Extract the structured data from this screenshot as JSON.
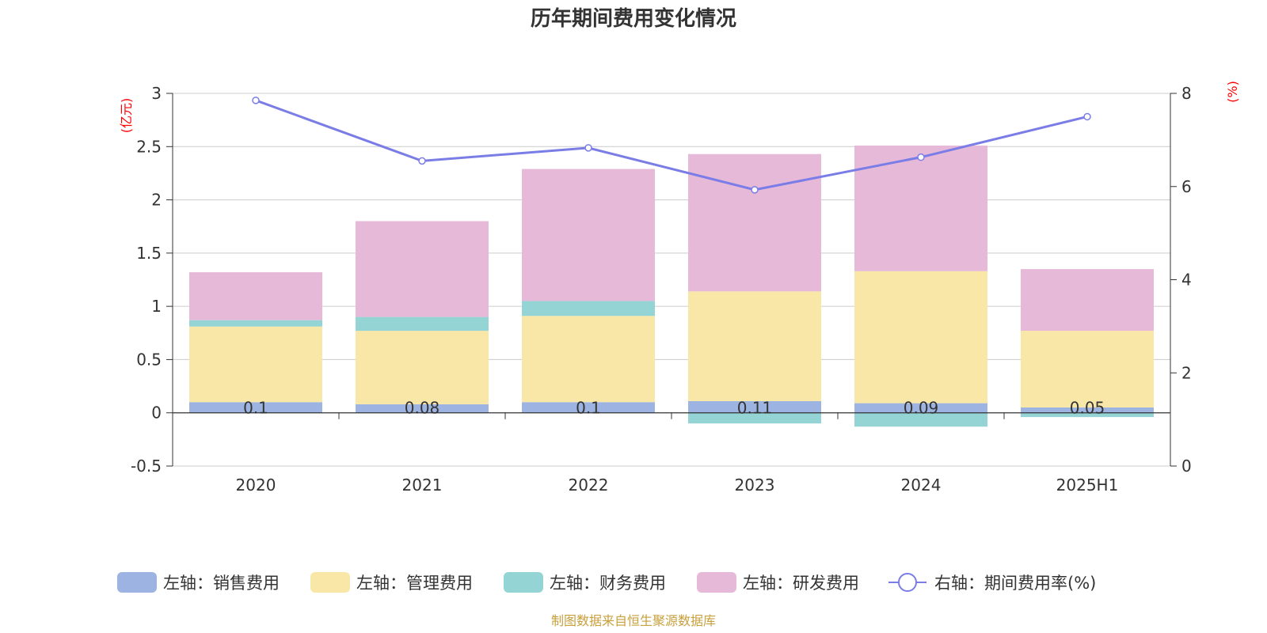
{
  "chart_data": {
    "type": "bar",
    "title": "历年期间费用变化情况",
    "categories": [
      "2020",
      "2021",
      "2022",
      "2023",
      "2024",
      "2025H1"
    ],
    "y_left": {
      "unit": "(亿元)",
      "min": -0.5,
      "max": 3,
      "ticks": [
        "-0.5",
        "0",
        "0.5",
        "1",
        "1.5",
        "2",
        "2.5",
        "3"
      ]
    },
    "y_right": {
      "unit": "(%)",
      "min": 0,
      "max": 8,
      "ticks": [
        "0",
        "2",
        "4",
        "6",
        "8"
      ]
    },
    "series": [
      {
        "name": "左轴：销售费用",
        "type": "bar",
        "axis": "left",
        "color": "#9db4e2",
        "values": [
          0.1,
          0.08,
          0.1,
          0.11,
          0.09,
          0.05
        ],
        "labels": [
          "0.1",
          "0.08",
          "0.1",
          "0.11",
          "0.09",
          "0.05"
        ]
      },
      {
        "name": "左轴：管理费用",
        "type": "bar",
        "axis": "left",
        "color": "#f8e7a7",
        "values": [
          0.71,
          0.69,
          0.81,
          1.03,
          1.24,
          0.72
        ]
      },
      {
        "name": "左轴：财务费用",
        "type": "bar",
        "axis": "left",
        "color": "#95d4d4",
        "values": [
          0.06,
          0.13,
          0.14,
          -0.1,
          -0.13,
          -0.04
        ]
      },
      {
        "name": "左轴：研发费用",
        "type": "bar",
        "axis": "left",
        "color": "#e7b9d9",
        "values": [
          0.45,
          0.9,
          1.24,
          1.29,
          1.18,
          0.58
        ]
      },
      {
        "name": "右轴：期间费用率(%)",
        "type": "line",
        "axis": "right",
        "color": "#7b7de6",
        "values": [
          7.85,
          6.55,
          6.83,
          5.93,
          6.63,
          7.5
        ]
      }
    ],
    "legend_position": "bottom",
    "grid": true,
    "source": "制图数据来自恒生聚源数据库"
  }
}
